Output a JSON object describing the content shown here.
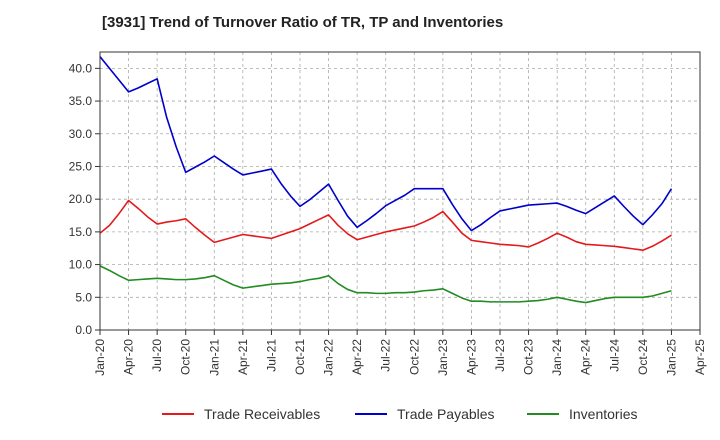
{
  "chart_data": {
    "type": "line",
    "title": "[3931]  Trend of Turnover Ratio of TR, TP and Inventories",
    "xlabel": "",
    "ylabel": "",
    "ylim": [
      0,
      42.5
    ],
    "yticks": [
      0.0,
      5.0,
      10.0,
      15.0,
      20.0,
      25.0,
      30.0,
      35.0,
      40.0
    ],
    "ytick_labels": [
      "0.0",
      "5.0",
      "10.0",
      "15.0",
      "20.0",
      "25.0",
      "30.0",
      "35.0",
      "40.0"
    ],
    "xtick_labels": [
      "Jan-20",
      "Apr-20",
      "Jul-20",
      "Oct-20",
      "Jan-21",
      "Apr-21",
      "Jul-21",
      "Oct-21",
      "Jan-22",
      "Apr-22",
      "Jul-22",
      "Oct-22",
      "Jan-23",
      "Apr-23",
      "Jul-23",
      "Oct-23",
      "Jan-24",
      "Apr-24",
      "Jul-24",
      "Oct-24",
      "Jan-25",
      "Apr-25"
    ],
    "x": [
      "Jan-20",
      "Feb-20",
      "Mar-20",
      "Apr-20",
      "May-20",
      "Jun-20",
      "Jul-20",
      "Aug-20",
      "Sep-20",
      "Oct-20",
      "Nov-20",
      "Dec-20",
      "Jan-21",
      "Feb-21",
      "Mar-21",
      "Apr-21",
      "May-21",
      "Jun-21",
      "Jul-21",
      "Aug-21",
      "Sep-21",
      "Oct-21",
      "Nov-21",
      "Dec-21",
      "Jan-22",
      "Feb-22",
      "Mar-22",
      "Apr-22",
      "May-22",
      "Jun-22",
      "Jul-22",
      "Aug-22",
      "Sep-22",
      "Oct-22",
      "Nov-22",
      "Dec-22",
      "Jan-23",
      "Feb-23",
      "Mar-23",
      "Apr-23",
      "May-23",
      "Jun-23",
      "Jul-23",
      "Aug-23",
      "Sep-23",
      "Oct-23",
      "Nov-23",
      "Dec-23",
      "Jan-24",
      "Feb-24",
      "Mar-24",
      "Apr-24",
      "May-24",
      "Jun-24",
      "Jul-24",
      "Aug-24",
      "Sep-24",
      "Oct-24",
      "Nov-24",
      "Dec-24",
      "Jan-25"
    ],
    "series": [
      {
        "name": "Trade Receivables",
        "color": "#e31a1c",
        "values": [
          14.8,
          16.0,
          17.8,
          19.8,
          18.6,
          17.3,
          16.2,
          16.5,
          16.7,
          17.0,
          15.7,
          14.5,
          13.4,
          13.8,
          14.2,
          14.6,
          14.4,
          14.2,
          14.0,
          14.5,
          15.0,
          15.5,
          16.2,
          16.9,
          17.6,
          16.0,
          14.7,
          13.8,
          14.2,
          14.6,
          15.0,
          15.3,
          15.6,
          15.9,
          16.5,
          17.2,
          18.1,
          16.5,
          14.8,
          13.7,
          13.5,
          13.3,
          13.1,
          13.0,
          12.9,
          12.7,
          13.3,
          14.0,
          14.8,
          14.2,
          13.5,
          13.1,
          13.0,
          12.9,
          12.8,
          12.6,
          12.4,
          12.2,
          12.8,
          13.6,
          14.5
        ]
      },
      {
        "name": "Trade Payables",
        "color": "#0000cc",
        "values": [
          41.8,
          40.0,
          38.2,
          36.4,
          37.0,
          37.7,
          38.4,
          32.5,
          28.0,
          24.1,
          24.9,
          25.7,
          26.6,
          25.6,
          24.6,
          23.7,
          24.0,
          24.3,
          24.6,
          22.4,
          20.5,
          18.9,
          19.9,
          21.1,
          22.3,
          19.8,
          17.4,
          15.7,
          16.7,
          17.8,
          19.0,
          19.8,
          20.6,
          21.6,
          21.6,
          21.6,
          21.6,
          19.2,
          17.0,
          15.2,
          16.1,
          17.2,
          18.2,
          18.5,
          18.8,
          19.1,
          19.2,
          19.3,
          19.4,
          18.9,
          18.3,
          17.8,
          18.7,
          19.6,
          20.5,
          18.9,
          17.4,
          16.1,
          17.6,
          19.3,
          21.6
        ]
      },
      {
        "name": "Inventories",
        "color": "#228b22",
        "values": [
          9.8,
          9.1,
          8.3,
          7.6,
          7.7,
          7.8,
          7.9,
          7.8,
          7.7,
          7.7,
          7.8,
          8.0,
          8.3,
          7.6,
          6.9,
          6.4,
          6.6,
          6.8,
          7.0,
          7.1,
          7.2,
          7.4,
          7.7,
          7.9,
          8.3,
          7.1,
          6.2,
          5.7,
          5.7,
          5.6,
          5.6,
          5.7,
          5.7,
          5.8,
          6.0,
          6.1,
          6.3,
          5.6,
          4.9,
          4.4,
          4.4,
          4.3,
          4.3,
          4.3,
          4.3,
          4.4,
          4.5,
          4.7,
          5.0,
          4.7,
          4.4,
          4.2,
          4.5,
          4.8,
          5.0,
          5.0,
          5.0,
          5.0,
          5.2,
          5.6,
          6.0
        ]
      }
    ],
    "legend": {
      "position": "bottom",
      "items": [
        "Trade Receivables",
        "Trade Payables",
        "Inventories"
      ]
    },
    "grid": {
      "x": true,
      "y": true,
      "color": "#aaaaaa",
      "style": "dashed"
    }
  }
}
